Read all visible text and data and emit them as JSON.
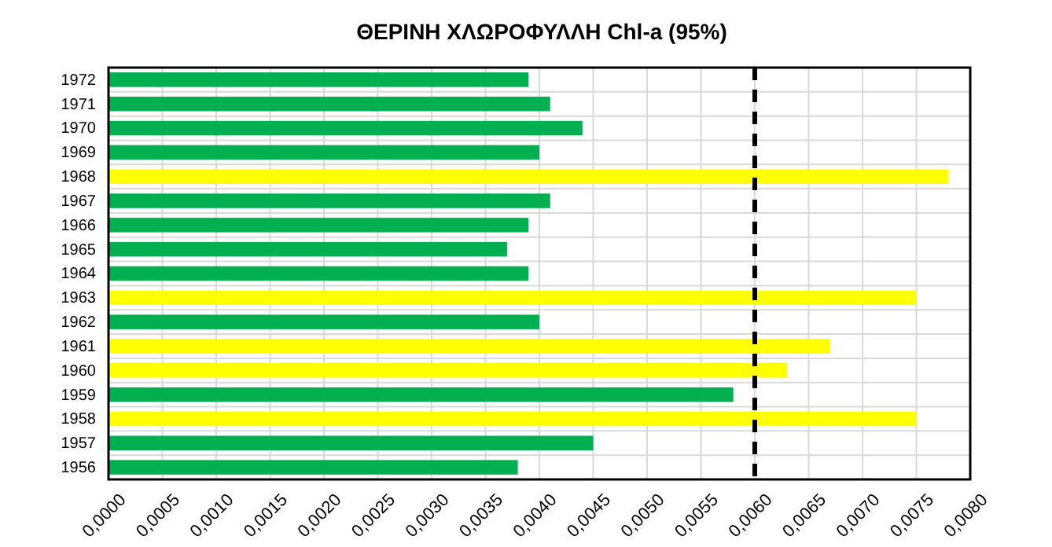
{
  "chart_data": {
    "type": "bar",
    "orientation": "horizontal",
    "title": "ΘΕΡΙΝΗ ΧΛΩΡΟΦΥΛΛΗ Chl-a (95%)",
    "categories": [
      "1972",
      "1971",
      "1970",
      "1969",
      "1968",
      "1967",
      "1966",
      "1965",
      "1964",
      "1963",
      "1962",
      "1961",
      "1960",
      "1959",
      "1958",
      "1957",
      "1956"
    ],
    "values": [
      0.0039,
      0.0041,
      0.0044,
      0.004,
      0.0078,
      0.0041,
      0.0039,
      0.0037,
      0.0039,
      0.0075,
      0.004,
      0.0067,
      0.0063,
      0.0058,
      0.0075,
      0.0045,
      0.0038
    ],
    "colors": [
      "#00b050",
      "#00b050",
      "#00b050",
      "#00b050",
      "#ffff00",
      "#00b050",
      "#00b050",
      "#00b050",
      "#00b050",
      "#ffff00",
      "#00b050",
      "#ffff00",
      "#ffff00",
      "#00b050",
      "#ffff00",
      "#00b050",
      "#00b050"
    ],
    "xlim": [
      0,
      0.008
    ],
    "xticks": [
      {
        "value": 0,
        "label": "0,0000"
      },
      {
        "value": 0.0005,
        "label": "0,0005"
      },
      {
        "value": 0.001,
        "label": "0,0010"
      },
      {
        "value": 0.0015,
        "label": "0,0015"
      },
      {
        "value": 0.002,
        "label": "0,0020"
      },
      {
        "value": 0.0025,
        "label": "0,0025"
      },
      {
        "value": 0.003,
        "label": "0,0030"
      },
      {
        "value": 0.0035,
        "label": "0,0035"
      },
      {
        "value": 0.004,
        "label": "0,0040"
      },
      {
        "value": 0.0045,
        "label": "0,0045"
      },
      {
        "value": 0.005,
        "label": "0,0050"
      },
      {
        "value": 0.0055,
        "label": "0,0055"
      },
      {
        "value": 0.006,
        "label": "0,0060"
      },
      {
        "value": 0.0065,
        "label": "0,0065"
      },
      {
        "value": 0.007,
        "label": "0,0070"
      },
      {
        "value": 0.0075,
        "label": "0,0075"
      },
      {
        "value": 0.008,
        "label": "0,0080"
      }
    ],
    "ref_lines": [
      {
        "axis": "x",
        "value": 0.006,
        "color": "#000000",
        "line_style": "dashed"
      }
    ],
    "grid": true
  }
}
